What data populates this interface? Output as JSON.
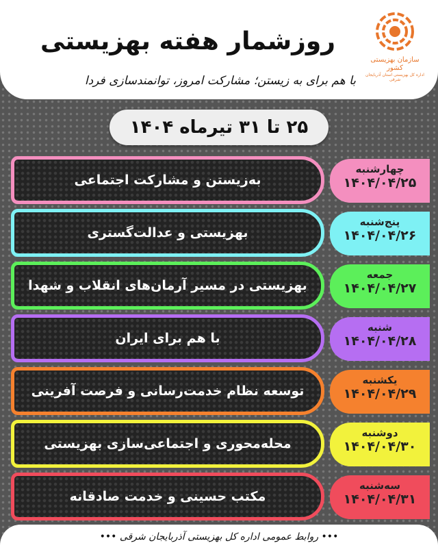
{
  "header": {
    "title": "روزشمار هفته بهزیستی",
    "slogan": "با هم برای به زیستن؛ مشارکت امروز، توانمندسازی فردا",
    "logo": {
      "org": "سازمان بهزیستی کشور",
      "sub": "اداره کل بهزیستی استان آذربایجان شرقی",
      "color": "#e8762b"
    }
  },
  "date_range": "۲۵ تا ۳۱ تیرماه ۱۴۰۴",
  "days": [
    {
      "day": "چهارشنبه",
      "date": "۱۴۰۴/۰۴/۲۵",
      "theme": "به‌زیستن و مشارکت اجتماعی",
      "color": "#f48fbf"
    },
    {
      "day": "پنج‌شنبه",
      "date": "۱۴۰۴/۰۴/۲۶",
      "theme": "بهزیستی و عدالت‌گستری",
      "color": "#7ef1f4"
    },
    {
      "day": "جمعه",
      "date": "۱۴۰۴/۰۴/۲۷",
      "theme": "بهزیستی در مسیر آرمان‌های انقلاب و شهدا",
      "color": "#5cef5a"
    },
    {
      "day": "شنبه",
      "date": "۱۴۰۴/۰۴/۲۸",
      "theme": "با هم برای ایران",
      "color": "#b66ef2"
    },
    {
      "day": "یکشنبه",
      "date": "۱۴۰۴/۰۴/۲۹",
      "theme": "توسعه نظام خدمت‌رسانی و فرصت آفرینی",
      "color": "#f5812e"
    },
    {
      "day": "دوشنبه",
      "date": "۱۴۰۴/۰۴/۳۰",
      "theme": "محله‌محوری و اجتماعی‌سازی بهزیستی",
      "color": "#f2f23c"
    },
    {
      "day": "سه‌شنبه",
      "date": "۱۴۰۴/۰۴/۳۱",
      "theme": "مکتب حسینی و خدمت صادقانه",
      "color": "#f04c5c"
    }
  ],
  "footer": "••• روابط عمومی اداره کل بهزیستی آذربایجان شرقی •••"
}
